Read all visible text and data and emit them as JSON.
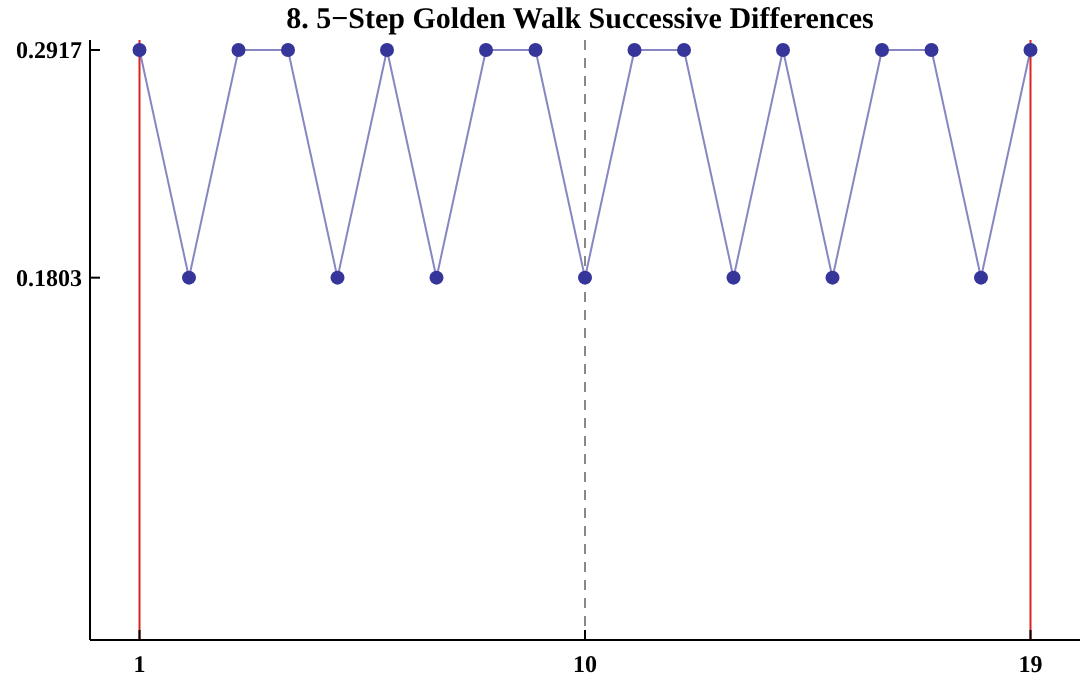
{
  "chart_data": {
    "type": "line",
    "title": "8. 5−Step Golden Walk Successive Differences",
    "x": [
      1,
      2,
      3,
      4,
      5,
      6,
      7,
      8,
      9,
      10,
      11,
      12,
      13,
      14,
      15,
      16,
      17,
      18,
      19
    ],
    "series": [
      {
        "color": "#36369a",
        "values": [
          0.2917,
          0.1803,
          0.2917,
          0.2917,
          0.1803,
          0.2917,
          0.1803,
          0.2917,
          0.2917,
          0.1803,
          0.2917,
          0.2917,
          0.1803,
          0.2917,
          0.1803,
          0.2917,
          0.2917,
          0.1803,
          0.2917
        ]
      }
    ],
    "xlim": [
      0,
      20
    ],
    "ylim": [
      0.003,
      0.2966
    ],
    "xticks": [
      1,
      10,
      19
    ],
    "yticks": [
      0.2917,
      0.1803
    ],
    "marker": "circle",
    "line_style": "solid",
    "grid": false,
    "ref_lines": [
      {
        "axis": "x",
        "value": 1,
        "color": "#dd2222",
        "line_style": "solid"
      },
      {
        "axis": "x",
        "value": 10,
        "color": "#888888",
        "line_style": "dashed"
      },
      {
        "axis": "x",
        "value": 19,
        "color": "#dd2222",
        "line_style": "solid"
      }
    ]
  }
}
